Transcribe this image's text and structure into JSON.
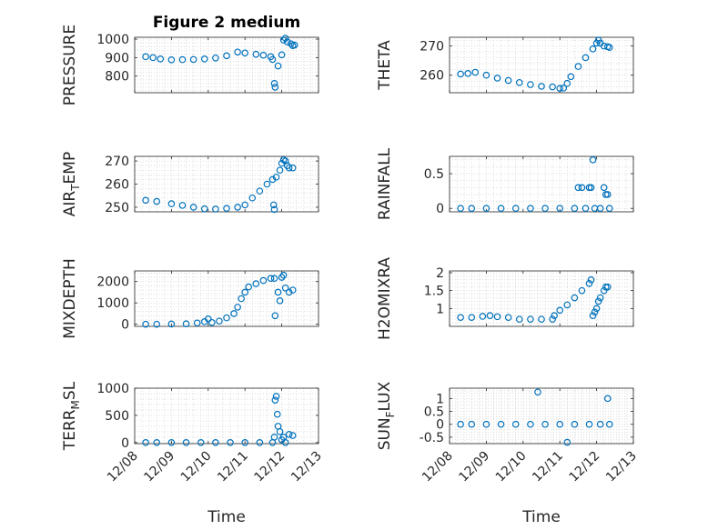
{
  "figure": {
    "title": "Figure 2 medium",
    "x_label": "Time",
    "marker_color": "#0072BD",
    "x_tick_labels": [
      "12/08",
      "12/09",
      "12/10",
      "12/11",
      "12/12",
      "12/13"
    ]
  },
  "chart_data": [
    {
      "type": "scatter",
      "ylabel_main": "PRESSURE",
      "ylabel_sub": "",
      "ylim": [
        710,
        1010
      ],
      "yticks": [
        800,
        900,
        1000
      ],
      "yticklabels": [
        "800",
        "900",
        "1000"
      ],
      "grid": "minor",
      "points": [
        [
          8.3,
          905
        ],
        [
          8.5,
          900
        ],
        [
          8.7,
          893
        ],
        [
          9.0,
          888
        ],
        [
          9.3,
          889
        ],
        [
          9.6,
          890
        ],
        [
          9.9,
          893
        ],
        [
          10.2,
          898
        ],
        [
          10.5,
          910
        ],
        [
          10.8,
          930
        ],
        [
          11.0,
          925
        ],
        [
          11.3,
          918
        ],
        [
          11.5,
          913
        ],
        [
          11.7,
          905
        ],
        [
          11.75,
          890
        ],
        [
          11.8,
          760
        ],
        [
          11.82,
          740
        ],
        [
          11.9,
          855
        ],
        [
          12.0,
          915
        ],
        [
          12.05,
          995
        ],
        [
          12.1,
          1005
        ],
        [
          12.15,
          985
        ],
        [
          12.25,
          975
        ],
        [
          12.3,
          965
        ],
        [
          12.35,
          968
        ]
      ]
    },
    {
      "type": "scatter",
      "ylabel_main": "THETA",
      "ylabel_sub": "",
      "ylim": [
        254,
        273
      ],
      "yticks": [
        260,
        270
      ],
      "yticklabels": [
        "260",
        "270"
      ],
      "grid": "minor",
      "points": [
        [
          8.3,
          260.4
        ],
        [
          8.5,
          260.6
        ],
        [
          8.7,
          261.0
        ],
        [
          9.0,
          260.0
        ],
        [
          9.3,
          259.0
        ],
        [
          9.6,
          258.2
        ],
        [
          9.9,
          257.5
        ],
        [
          10.2,
          256.8
        ],
        [
          10.5,
          256.2
        ],
        [
          10.8,
          256.0
        ],
        [
          11.0,
          255.5
        ],
        [
          11.1,
          255.6
        ],
        [
          11.2,
          257.2
        ],
        [
          11.3,
          259.5
        ],
        [
          11.5,
          263.0
        ],
        [
          11.7,
          266.0
        ],
        [
          11.9,
          269.0
        ],
        [
          12.0,
          271.0
        ],
        [
          12.05,
          272.0
        ],
        [
          12.1,
          271.0
        ],
        [
          12.2,
          270.0
        ],
        [
          12.3,
          269.8
        ],
        [
          12.35,
          269.5
        ]
      ]
    },
    {
      "type": "scatter",
      "ylabel_main": "AIR",
      "ylabel_sub": "T",
      "ylabel_tail": "EMP",
      "ylim": [
        248,
        272
      ],
      "yticks": [
        250,
        260,
        270
      ],
      "yticklabels": [
        "250",
        "260",
        "270"
      ],
      "grid": "minor",
      "points": [
        [
          8.3,
          253.0
        ],
        [
          8.6,
          252.5
        ],
        [
          9.0,
          251.5
        ],
        [
          9.3,
          250.8
        ],
        [
          9.6,
          250.0
        ],
        [
          9.9,
          249.3
        ],
        [
          10.2,
          249.2
        ],
        [
          10.5,
          249.5
        ],
        [
          10.8,
          250.0
        ],
        [
          11.0,
          251.0
        ],
        [
          11.2,
          254.0
        ],
        [
          11.4,
          257.0
        ],
        [
          11.6,
          260.0
        ],
        [
          11.75,
          262.0
        ],
        [
          11.78,
          251.0
        ],
        [
          11.8,
          249.0
        ],
        [
          11.85,
          263.0
        ],
        [
          11.95,
          266.0
        ],
        [
          12.0,
          269.0
        ],
        [
          12.05,
          270.5
        ],
        [
          12.1,
          270.0
        ],
        [
          12.15,
          268.0
        ],
        [
          12.2,
          267.0
        ],
        [
          12.3,
          267.0
        ]
      ]
    },
    {
      "type": "scatter",
      "ylabel_main": "RAINFALL",
      "ylabel_sub": "",
      "ylim": [
        -0.05,
        0.75
      ],
      "yticks": [
        0,
        0.5
      ],
      "yticklabels": [
        "0",
        "0.5"
      ],
      "grid": "minor",
      "points": [
        [
          8.3,
          0
        ],
        [
          8.6,
          0
        ],
        [
          9.0,
          0
        ],
        [
          9.4,
          0
        ],
        [
          9.8,
          0
        ],
        [
          10.2,
          0
        ],
        [
          10.6,
          0
        ],
        [
          11.0,
          0
        ],
        [
          11.4,
          0
        ],
        [
          11.5,
          0.3
        ],
        [
          11.6,
          0.3
        ],
        [
          11.7,
          0
        ],
        [
          11.8,
          0.3
        ],
        [
          11.85,
          0.3
        ],
        [
          11.9,
          0.7
        ],
        [
          11.95,
          0
        ],
        [
          12.1,
          0
        ],
        [
          12.2,
          0.3
        ],
        [
          12.25,
          0.2
        ],
        [
          12.3,
          0.2
        ],
        [
          12.35,
          0
        ]
      ]
    },
    {
      "type": "scatter",
      "ylabel_main": "MIXDEPTH",
      "ylabel_sub": "",
      "ylim": [
        -100,
        2500
      ],
      "yticks": [
        0,
        1000,
        2000
      ],
      "yticklabels": [
        "0",
        "1000",
        "2000"
      ],
      "grid": "minor",
      "points": [
        [
          8.3,
          0
        ],
        [
          8.6,
          0
        ],
        [
          9.0,
          10
        ],
        [
          9.4,
          20
        ],
        [
          9.7,
          60
        ],
        [
          9.9,
          120
        ],
        [
          10.0,
          250
        ],
        [
          10.1,
          80
        ],
        [
          10.3,
          150
        ],
        [
          10.5,
          300
        ],
        [
          10.7,
          500
        ],
        [
          10.8,
          800
        ],
        [
          10.9,
          1200
        ],
        [
          11.0,
          1500
        ],
        [
          11.1,
          1750
        ],
        [
          11.3,
          1900
        ],
        [
          11.5,
          2050
        ],
        [
          11.7,
          2150
        ],
        [
          11.8,
          2150
        ],
        [
          11.82,
          400
        ],
        [
          11.9,
          1500
        ],
        [
          11.95,
          1100
        ],
        [
          12.0,
          2200
        ],
        [
          12.05,
          2300
        ],
        [
          12.1,
          1700
        ],
        [
          12.2,
          1500
        ],
        [
          12.3,
          1600
        ]
      ]
    },
    {
      "type": "scatter",
      "ylabel_main": "H2OMIXRA",
      "ylabel_sub": "",
      "ylim": [
        0.5,
        2.05
      ],
      "yticks": [
        1,
        1.5,
        2
      ],
      "yticklabels": [
        "1",
        "1.5",
        "2"
      ],
      "grid": "minor",
      "points": [
        [
          8.3,
          0.75
        ],
        [
          8.6,
          0.75
        ],
        [
          8.9,
          0.78
        ],
        [
          9.1,
          0.8
        ],
        [
          9.3,
          0.77
        ],
        [
          9.6,
          0.75
        ],
        [
          9.9,
          0.7
        ],
        [
          10.2,
          0.7
        ],
        [
          10.5,
          0.7
        ],
        [
          10.8,
          0.7
        ],
        [
          10.85,
          0.8
        ],
        [
          11.0,
          0.95
        ],
        [
          11.2,
          1.1
        ],
        [
          11.4,
          1.3
        ],
        [
          11.6,
          1.5
        ],
        [
          11.8,
          1.7
        ],
        [
          11.85,
          1.8
        ],
        [
          11.9,
          0.8
        ],
        [
          11.95,
          0.9
        ],
        [
          12.0,
          1.0
        ],
        [
          12.05,
          1.2
        ],
        [
          12.1,
          1.3
        ],
        [
          12.2,
          1.5
        ],
        [
          12.25,
          1.6
        ],
        [
          12.3,
          1.6
        ]
      ]
    },
    {
      "type": "scatter",
      "ylabel_main": "TERR",
      "ylabel_sub": "M",
      "ylabel_tail": "SL",
      "ylim": [
        -20,
        1000
      ],
      "yticks": [
        0,
        500,
        1000
      ],
      "yticklabels": [
        "0",
        "500",
        "1000"
      ],
      "grid": "minor",
      "points": [
        [
          8.3,
          0
        ],
        [
          8.6,
          0
        ],
        [
          9.0,
          0
        ],
        [
          9.4,
          0
        ],
        [
          9.8,
          0
        ],
        [
          10.2,
          0
        ],
        [
          10.6,
          0
        ],
        [
          11.0,
          0
        ],
        [
          11.4,
          0
        ],
        [
          11.75,
          0
        ],
        [
          11.8,
          100
        ],
        [
          11.82,
          780
        ],
        [
          11.85,
          850
        ],
        [
          11.88,
          520
        ],
        [
          11.9,
          300
        ],
        [
          11.95,
          200
        ],
        [
          12.0,
          50
        ],
        [
          12.05,
          100
        ],
        [
          12.1,
          0
        ],
        [
          12.2,
          150
        ],
        [
          12.3,
          130
        ]
      ]
    },
    {
      "type": "scatter",
      "ylabel_main": "SUN",
      "ylabel_sub": "F",
      "ylabel_tail": "LUX",
      "ylim": [
        -0.75,
        1.4
      ],
      "yticks": [
        -0.5,
        0,
        0.5,
        1
      ],
      "yticklabels": [
        "-0.5",
        "0",
        "0.5",
        "1"
      ],
      "grid": "minor",
      "points": [
        [
          8.3,
          0
        ],
        [
          8.6,
          0
        ],
        [
          9.0,
          0
        ],
        [
          9.4,
          0
        ],
        [
          9.8,
          0
        ],
        [
          10.2,
          0
        ],
        [
          10.4,
          1.25
        ],
        [
          10.6,
          0
        ],
        [
          11.0,
          0
        ],
        [
          11.2,
          -0.7
        ],
        [
          11.4,
          0
        ],
        [
          11.8,
          0
        ],
        [
          12.1,
          0
        ],
        [
          12.3,
          1.0
        ],
        [
          12.35,
          0
        ]
      ]
    }
  ]
}
